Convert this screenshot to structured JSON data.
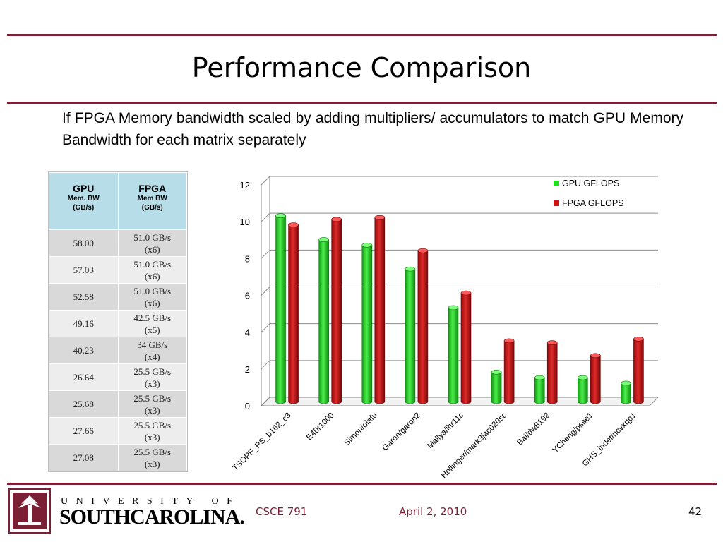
{
  "slide": {
    "title": "Performance Comparison",
    "bullet": "If FPGA Memory bandwidth scaled by adding multipliers/ accumulators to match GPU Memory Bandwidth for each matrix separately"
  },
  "table": {
    "gpu_header": "GPU",
    "gpu_sub1": "Mem. BW",
    "gpu_sub2": "(GB/s)",
    "fpga_header": "FPGA",
    "fpga_sub1": "Mem BW",
    "fpga_sub2": "(GB/s)",
    "rows": [
      {
        "gpu": "58.00",
        "fpga1": "51.0 GB/s",
        "fpga2": "(x6)"
      },
      {
        "gpu": "57.03",
        "fpga1": "51.0 GB/s",
        "fpga2": "(x6)"
      },
      {
        "gpu": "52.58",
        "fpga1": "51.0 GB/s",
        "fpga2": "(x6)"
      },
      {
        "gpu": "49.16",
        "fpga1": "42.5 GB/s",
        "fpga2": "(x5)"
      },
      {
        "gpu": "40.23",
        "fpga1": "34 GB/s",
        "fpga2": "(x4)"
      },
      {
        "gpu": "26.64",
        "fpga1": "25.5 GB/s",
        "fpga2": "(x3)"
      },
      {
        "gpu": "25.68",
        "fpga1": "25.5 GB/s",
        "fpga2": "(x3)"
      },
      {
        "gpu": "27.66",
        "fpga1": "25.5 GB/s",
        "fpga2": "(x3)"
      },
      {
        "gpu": "27.08",
        "fpga1": "25.5 GB/s",
        "fpga2": "(x3)"
      }
    ]
  },
  "chart_data": {
    "type": "bar",
    "categories": [
      "TSOPF_RS_b162_c3",
      "E40r1000",
      "Simon/olafu",
      "Garon/garon2",
      "Mallya/lhr11c",
      "Hollinger/mark3jac020sc",
      "Bai/dw8192",
      "YCheng/psse1",
      "GHS_indef/ncvxqp1"
    ],
    "series": [
      {
        "name": "GPU GFLOPS",
        "color": "#22dd22",
        "values": [
          10.1,
          8.8,
          8.5,
          7.2,
          5.1,
          1.6,
          1.3,
          1.3,
          1.0
        ]
      },
      {
        "name": "FPGA GFLOPS",
        "color": "#cc1111",
        "values": [
          9.6,
          9.9,
          10.0,
          8.2,
          5.9,
          3.3,
          3.2,
          2.5,
          3.4
        ]
      }
    ],
    "ylim": [
      0,
      12
    ],
    "yticks": [
      "0",
      "2",
      "4",
      "6",
      "8",
      "10",
      "12"
    ],
    "grid": true,
    "legend": "top-right",
    "style": "3d-cylinder"
  },
  "footer": {
    "university_line": "UNIVERSITY OF",
    "south": "SOUTH",
    "carolina": "CAROLINA.",
    "course": "CSCE 791",
    "date": "April 2, 2010",
    "page": "42"
  }
}
